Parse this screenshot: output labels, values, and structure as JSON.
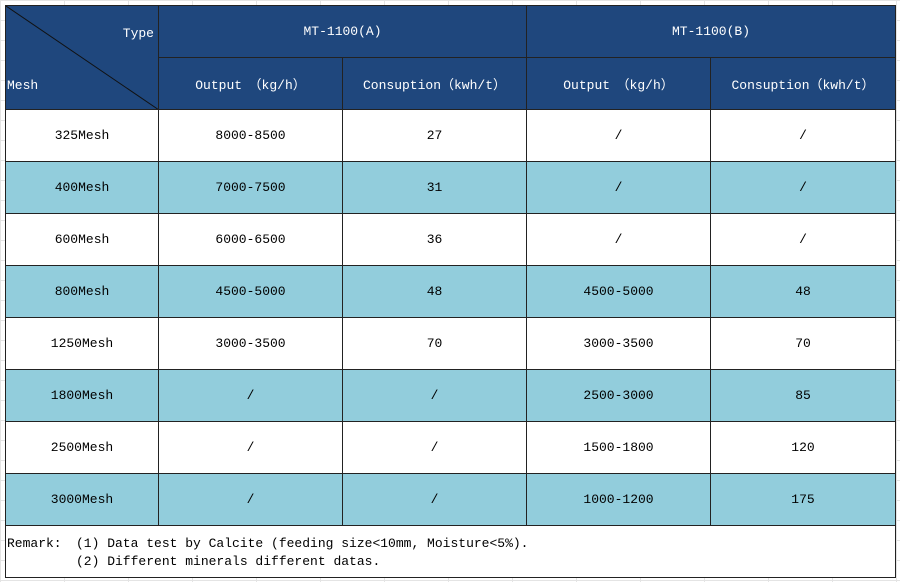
{
  "header": {
    "type_label": "Type",
    "mesh_label": "Mesh",
    "models": [
      "MT-1100(A)",
      "MT-1100(B)"
    ],
    "subheaders": [
      "Output　（kg/h）",
      "Consuption（kwh/t）",
      "Output　（kg/h）",
      "Consuption（kwh/t）"
    ]
  },
  "table": {
    "rows": [
      [
        "325Mesh",
        "8000-8500",
        "27",
        "/",
        "/"
      ],
      [
        "400Mesh",
        "7000-7500",
        "31",
        "/",
        "/"
      ],
      [
        "600Mesh",
        "6000-6500",
        "36",
        "/",
        "/"
      ],
      [
        "800Mesh",
        "4500-5000",
        "48",
        "4500-5000",
        "48"
      ],
      [
        "1250Mesh",
        "3000-3500",
        "70",
        "3000-3500",
        "70"
      ],
      [
        "1800Mesh",
        "/",
        "/",
        "2500-3000",
        "85"
      ],
      [
        "2500Mesh",
        "/",
        "/",
        "1500-1800",
        "120"
      ],
      [
        "3000Mesh",
        "/",
        "/",
        "1000-1200",
        "175"
      ]
    ]
  },
  "remark": {
    "label": "Remark:",
    "lines": [
      "(1) Data test by Calcite (feeding size<10mm, Moisture<5%).",
      "(2) Different minerals different datas."
    ]
  }
}
